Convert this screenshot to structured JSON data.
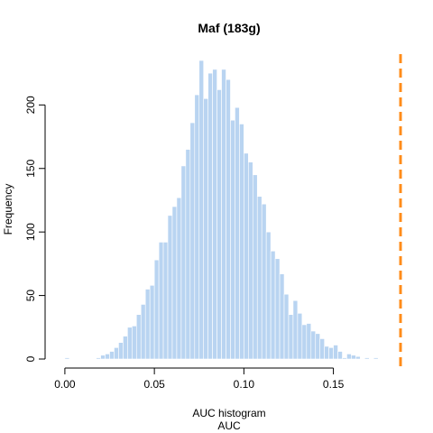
{
  "chart_data": {
    "type": "bar",
    "title": "Maf (183g)",
    "xlabel_line1": "AUC histogram",
    "xlabel_line2": "AUC",
    "ylabel": "Frequency",
    "xlim": [
      -0.006,
      0.188
    ],
    "ylim": [
      0,
      240
    ],
    "x_ticks": [
      0.0,
      0.05,
      0.1,
      0.15
    ],
    "x_tick_labels": [
      "0.00",
      "0.05",
      "0.10",
      "0.15"
    ],
    "y_ticks": [
      0,
      50,
      100,
      150,
      200
    ],
    "y_tick_labels": [
      "0",
      "50",
      "100",
      "150",
      "200"
    ],
    "bin_width": 0.0025,
    "bins_start": 0.0,
    "values": [
      1,
      0,
      0,
      0,
      0,
      0,
      0,
      1,
      3,
      4,
      6,
      9,
      13,
      18,
      25,
      26,
      35,
      43,
      55,
      58,
      78,
      92,
      92,
      113,
      120,
      127,
      152,
      165,
      186,
      208,
      235,
      205,
      225,
      228,
      212,
      228,
      220,
      188,
      198,
      185,
      162,
      155,
      145,
      128,
      122,
      100,
      85,
      79,
      67,
      51,
      35,
      46,
      36,
      27,
      28,
      22,
      20,
      16,
      10,
      9,
      11,
      6,
      1,
      4,
      3,
      2,
      0,
      1,
      0,
      1,
      0
    ],
    "reference_x": 0.1875,
    "colors": {
      "bars": "#b9d4f1",
      "bar_border": "#ffffff",
      "reference_line": "#ff8c1a",
      "axis": "#000000"
    }
  }
}
